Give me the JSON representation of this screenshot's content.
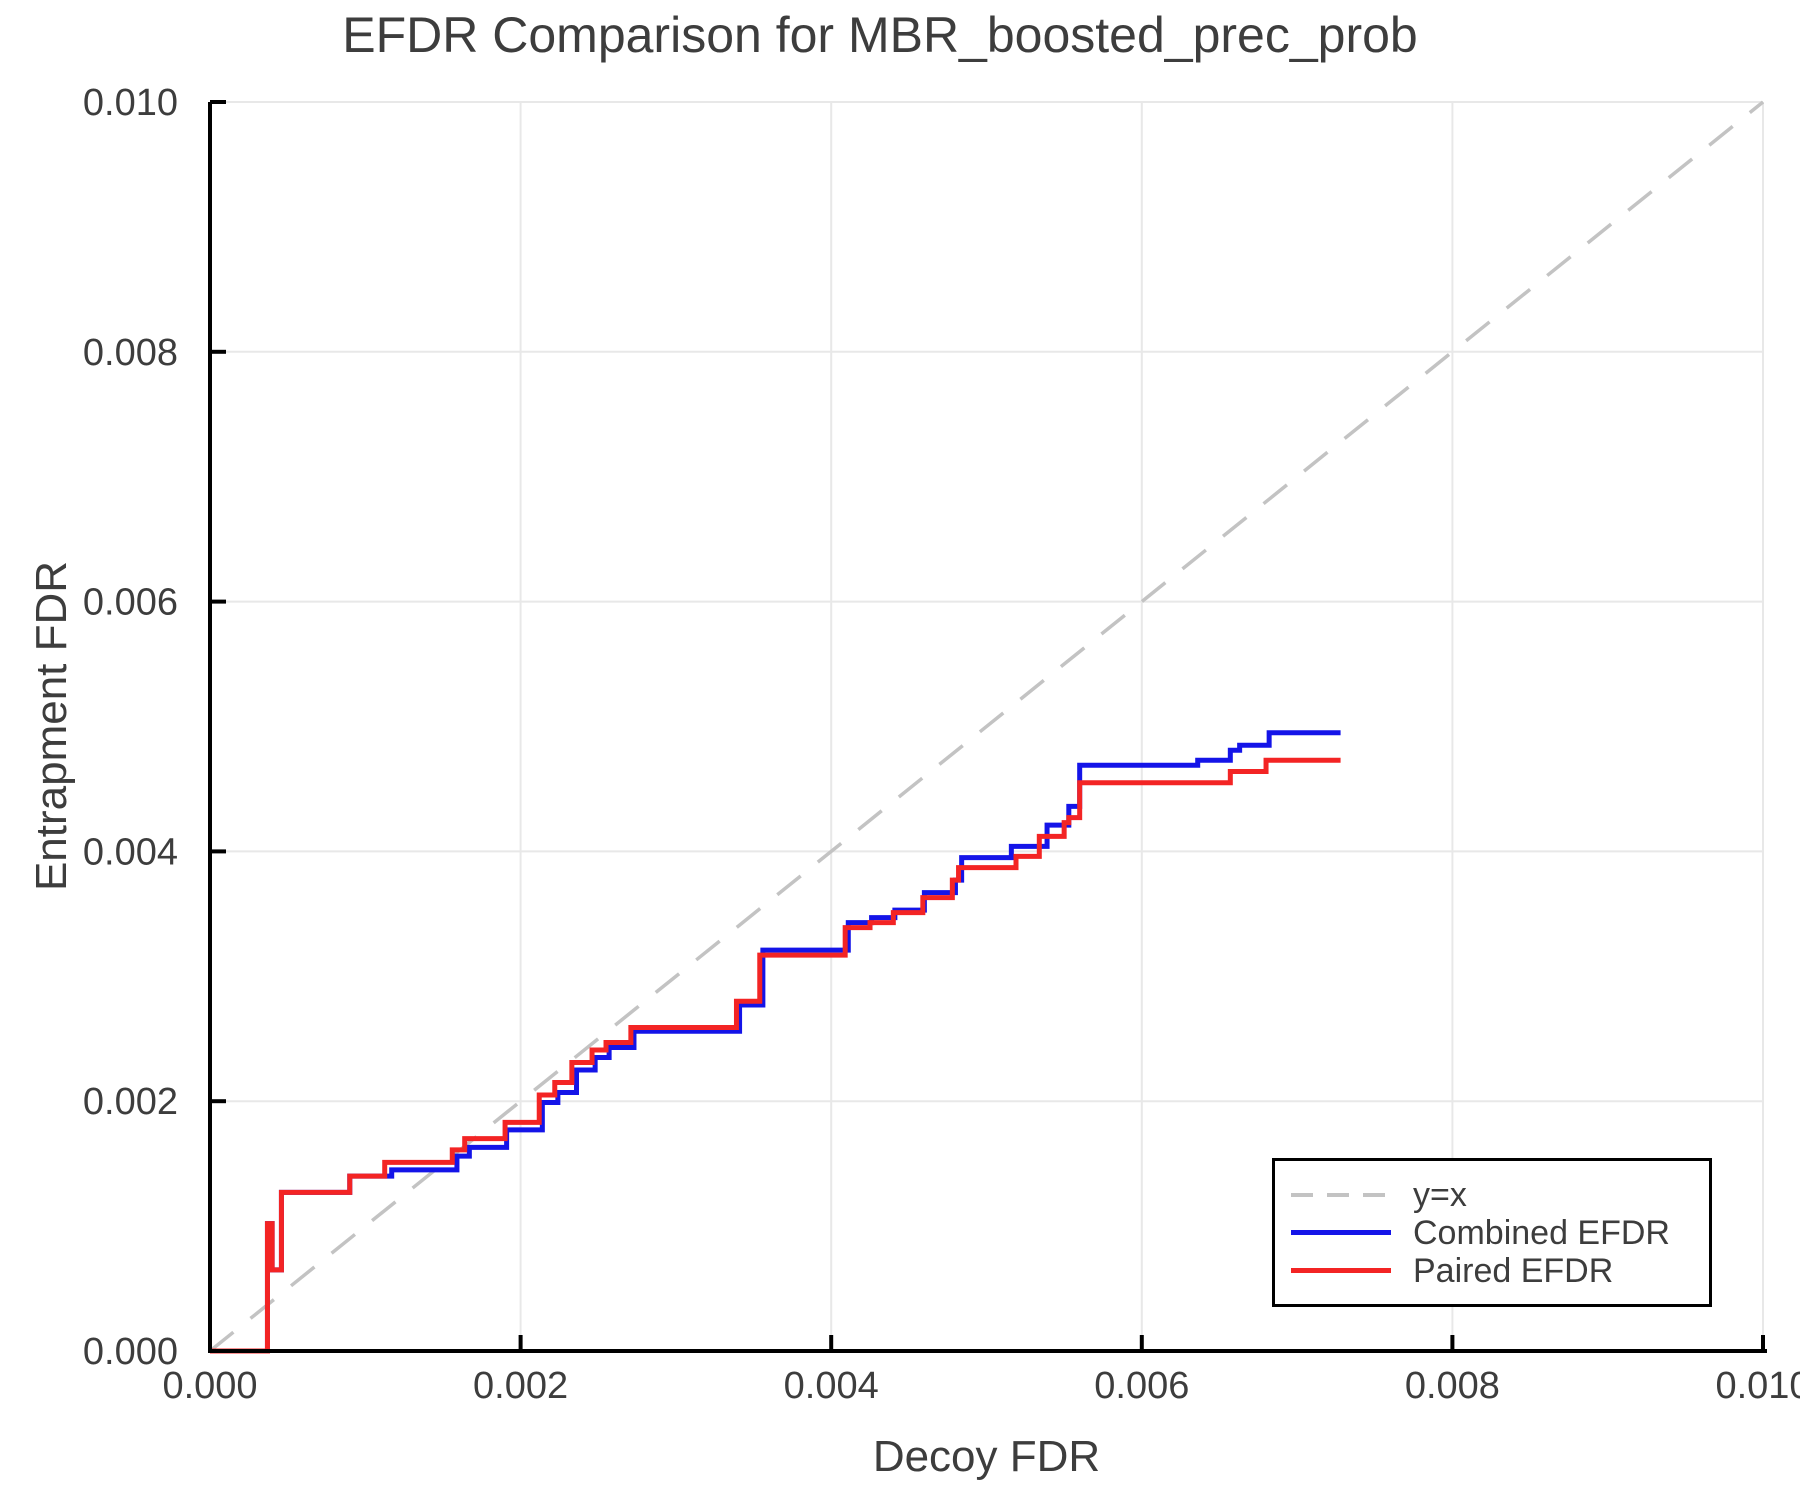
{
  "chart_data": {
    "type": "line",
    "title": "EFDR Comparison for MBR_boosted_prec_prob",
    "xlabel": "Decoy FDR",
    "ylabel": "Entrapment FDR",
    "xlim": [
      0.0,
      0.01
    ],
    "ylim": [
      0.0,
      0.01
    ],
    "grid": true,
    "xticks": [
      {
        "value": 0.0,
        "label": "0.000"
      },
      {
        "value": 0.002,
        "label": "0.002"
      },
      {
        "value": 0.004,
        "label": "0.004"
      },
      {
        "value": 0.006,
        "label": "0.006"
      },
      {
        "value": 0.008,
        "label": "0.008"
      },
      {
        "value": 0.01,
        "label": "0.010"
      }
    ],
    "yticks": [
      {
        "value": 0.0,
        "label": "0.000"
      },
      {
        "value": 0.002,
        "label": "0.002"
      },
      {
        "value": 0.004,
        "label": "0.004"
      },
      {
        "value": 0.006,
        "label": "0.006"
      },
      {
        "value": 0.008,
        "label": "0.008"
      },
      {
        "value": 0.01,
        "label": "0.010"
      }
    ],
    "legend": {
      "position": "lower right"
    },
    "series": [
      {
        "name": "y=x",
        "color": "#c3c3c3",
        "dash": true,
        "step": false,
        "width": 3.5,
        "points": [
          [
            0.0,
            0.0
          ],
          [
            0.01,
            0.01
          ]
        ]
      },
      {
        "name": "Combined EFDR",
        "color": "#1414e8",
        "dash": false,
        "step": true,
        "width": 5,
        "x_end": 0.00728,
        "points": [
          [
            0.0,
            0.0
          ],
          [
            0.00037,
            0.00102
          ],
          [
            0.0004,
            0.00065
          ],
          [
            0.00046,
            0.00127
          ],
          [
            0.0009,
            0.0014
          ],
          [
            0.00117,
            0.00145
          ],
          [
            0.00159,
            0.00156
          ],
          [
            0.00167,
            0.00163
          ],
          [
            0.00191,
            0.00177
          ],
          [
            0.00214,
            0.00199
          ],
          [
            0.00224,
            0.00207
          ],
          [
            0.00236,
            0.00225
          ],
          [
            0.00248,
            0.00235
          ],
          [
            0.00257,
            0.00243
          ],
          [
            0.00273,
            0.00256
          ],
          [
            0.00341,
            0.00277
          ],
          [
            0.00356,
            0.00321
          ],
          [
            0.00411,
            0.00343
          ],
          [
            0.00426,
            0.00347
          ],
          [
            0.00441,
            0.00353
          ],
          [
            0.0046,
            0.00367
          ],
          [
            0.0048,
            0.00377
          ],
          [
            0.00484,
            0.00395
          ],
          [
            0.00516,
            0.00404
          ],
          [
            0.00539,
            0.00421
          ],
          [
            0.00553,
            0.00436
          ],
          [
            0.0056,
            0.00469
          ],
          [
            0.00636,
            0.00473
          ],
          [
            0.00657,
            0.00481
          ],
          [
            0.00663,
            0.00485
          ],
          [
            0.00682,
            0.00495
          ]
        ]
      },
      {
        "name": "Paired EFDR",
        "color": "#f32424",
        "dash": false,
        "step": true,
        "width": 5,
        "x_end": 0.00728,
        "points": [
          [
            0.0,
            0.0
          ],
          [
            0.00037,
            0.00102
          ],
          [
            0.0004,
            0.00065
          ],
          [
            0.00046,
            0.00127
          ],
          [
            0.0009,
            0.0014
          ],
          [
            0.001125,
            0.00151
          ],
          [
            0.00156,
            0.00161
          ],
          [
            0.00164,
            0.0017
          ],
          [
            0.0019,
            0.00183
          ],
          [
            0.00212,
            0.00205
          ],
          [
            0.00222,
            0.00215
          ],
          [
            0.00233,
            0.00231
          ],
          [
            0.00246,
            0.00241
          ],
          [
            0.00255,
            0.00247
          ],
          [
            0.00271,
            0.00259
          ],
          [
            0.00339,
            0.0028
          ],
          [
            0.00354,
            0.00317
          ],
          [
            0.00409,
            0.00339
          ],
          [
            0.00425,
            0.00343
          ],
          [
            0.0044,
            0.00351
          ],
          [
            0.00459,
            0.00363
          ],
          [
            0.00478,
            0.00377
          ],
          [
            0.00482,
            0.00387
          ],
          [
            0.00519,
            0.00396
          ],
          [
            0.00534,
            0.00412
          ],
          [
            0.0055,
            0.00423
          ],
          [
            0.00553,
            0.00427
          ],
          [
            0.0056,
            0.00455
          ],
          [
            0.00657,
            0.00464
          ],
          [
            0.0068,
            0.00473
          ]
        ]
      }
    ],
    "style": {
      "grid_color": "#e8e8e8",
      "spine_color": "#000000",
      "text_color": "#3d3d3d",
      "background": "#ffffff"
    }
  }
}
